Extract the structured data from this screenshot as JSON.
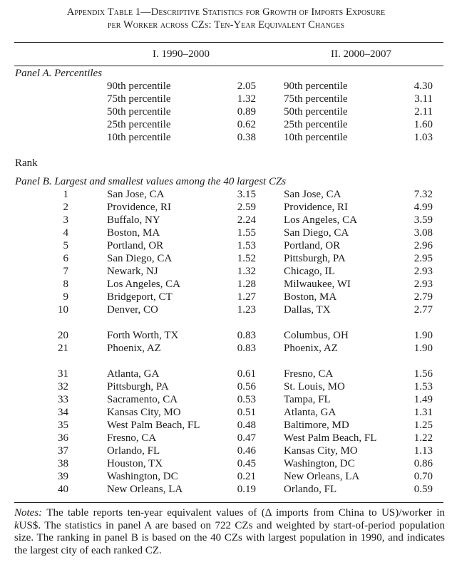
{
  "title": {
    "line1": "Appendix Table 1—Descriptive Statistics for Growth of Imports Exposure",
    "line2": "per Worker across CZs: Ten-Year Equivalent Changes"
  },
  "columns": {
    "period1": "I. 1990–2000",
    "period2": "II. 2000–2007"
  },
  "panel_a": {
    "label": "Panel A. Percentiles",
    "rows": [
      {
        "label1": "90th percentile",
        "value1": "2.05",
        "label2": "90th percentile",
        "value2": "4.30"
      },
      {
        "label1": "75th percentile",
        "value1": "1.32",
        "label2": "75th percentile",
        "value2": "3.11"
      },
      {
        "label1": "50th percentile",
        "value1": "0.89",
        "label2": "50th percentile",
        "value2": "2.11"
      },
      {
        "label1": "25th percentile",
        "value1": "0.62",
        "label2": "25th percentile",
        "value2": "1.60"
      },
      {
        "label1": "10th percentile",
        "value1": "0.38",
        "label2": "10th percentile",
        "value2": "1.03"
      }
    ]
  },
  "rank_label": "Rank",
  "panel_b": {
    "label": "Panel B. Largest and smallest values among the 40 largest CZs",
    "groups": [
      [
        {
          "rank": "1",
          "city1": "San Jose, CA",
          "value1": "3.15",
          "city2": "San Jose, CA",
          "value2": "7.32"
        },
        {
          "rank": "2",
          "city1": "Providence, RI",
          "value1": "2.59",
          "city2": "Providence, RI",
          "value2": "4.99"
        },
        {
          "rank": "3",
          "city1": "Buffalo, NY",
          "value1": "2.24",
          "city2": "Los Angeles, CA",
          "value2": "3.59"
        },
        {
          "rank": "4",
          "city1": "Boston, MA",
          "value1": "1.55",
          "city2": "San Diego, CA",
          "value2": "3.08"
        },
        {
          "rank": "5",
          "city1": "Portland, OR",
          "value1": "1.53",
          "city2": "Portland, OR",
          "value2": "2.96"
        },
        {
          "rank": "6",
          "city1": "San Diego, CA",
          "value1": "1.52",
          "city2": "Pittsburgh, PA",
          "value2": "2.95"
        },
        {
          "rank": "7",
          "city1": "Newark, NJ",
          "value1": "1.32",
          "city2": "Chicago, IL",
          "value2": "2.93"
        },
        {
          "rank": "8",
          "city1": "Los Angeles, CA",
          "value1": "1.28",
          "city2": "Milwaukee, WI",
          "value2": "2.93"
        },
        {
          "rank": "9",
          "city1": "Bridgeport, CT",
          "value1": "1.27",
          "city2": "Boston, MA",
          "value2": "2.79"
        },
        {
          "rank": "10",
          "city1": "Denver, CO",
          "value1": "1.23",
          "city2": "Dallas, TX",
          "value2": "2.77"
        }
      ],
      [
        {
          "rank": "20",
          "city1": "Forth Worth, TX",
          "value1": "0.83",
          "city2": "Columbus, OH",
          "value2": "1.90"
        },
        {
          "rank": "21",
          "city1": "Phoenix, AZ",
          "value1": "0.83",
          "city2": "Phoenix, AZ",
          "value2": "1.90"
        }
      ],
      [
        {
          "rank": "31",
          "city1": "Atlanta, GA",
          "value1": "0.61",
          "city2": "Fresno, CA",
          "value2": "1.56"
        },
        {
          "rank": "32",
          "city1": "Pittsburgh, PA",
          "value1": "0.56",
          "city2": "St. Louis, MO",
          "value2": "1.53"
        },
        {
          "rank": "33",
          "city1": "Sacramento, CA",
          "value1": "0.53",
          "city2": "Tampa, FL",
          "value2": "1.49"
        },
        {
          "rank": "34",
          "city1": "Kansas City, MO",
          "value1": "0.51",
          "city2": "Atlanta, GA",
          "value2": "1.31"
        },
        {
          "rank": "35",
          "city1": "West Palm Beach, FL",
          "value1": "0.48",
          "city2": "Baltimore, MD",
          "value2": "1.25"
        },
        {
          "rank": "36",
          "city1": "Fresno, CA",
          "value1": "0.47",
          "city2": "West Palm Beach, FL",
          "value2": "1.22"
        },
        {
          "rank": "37",
          "city1": "Orlando, FL",
          "value1": "0.46",
          "city2": "Kansas City, MO",
          "value2": "1.13"
        },
        {
          "rank": "38",
          "city1": "Houston, TX",
          "value1": "0.45",
          "city2": "Washington, DC",
          "value2": "0.86"
        },
        {
          "rank": "39",
          "city1": "Washington, DC",
          "value1": "0.21",
          "city2": "New Orleans, LA",
          "value2": "0.70"
        },
        {
          "rank": "40",
          "city1": "New Orleans, LA",
          "value1": "0.19",
          "city2": "Orlando, FL",
          "value2": "0.59"
        }
      ]
    ]
  },
  "notes": {
    "label": "Notes:",
    "text": "The table reports ten-year equivalent values of (Δ imports from China to US)/worker in kUS$. The statistics in panel A are based on 722 CZs and weighted by start-of-period population size. The ranking in panel B is based on the 40 CZs with largest population in 1990, and indicates the largest city of each ranked CZ."
  }
}
